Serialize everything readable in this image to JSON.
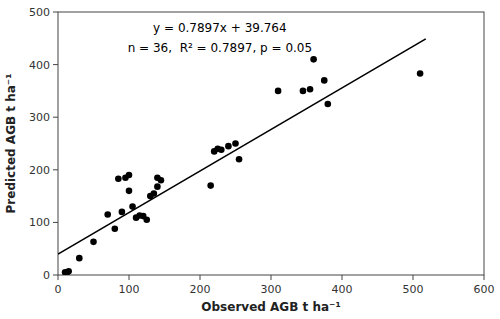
{
  "chart_data": {
    "type": "scatter",
    "xlabel": "Observed AGB t ha⁻¹",
    "ylabel": "Predicted AGB t ha⁻¹",
    "annotations": [
      "y = 0.7897x + 39.764",
      "n = 36,  R² = 0.7897, p = 0.05"
    ],
    "xlim": [
      0,
      600
    ],
    "ylim": [
      0,
      500
    ],
    "xticks": [
      0,
      100,
      200,
      300,
      400,
      500,
      600
    ],
    "yticks": [
      0,
      100,
      200,
      300,
      400,
      500
    ],
    "grid": false,
    "series": [
      {
        "type": "scatter",
        "color": "black",
        "x": [
          10,
          12,
          15,
          30,
          50,
          70,
          80,
          85,
          90,
          95,
          100,
          100,
          105,
          110,
          115,
          120,
          125,
          130,
          135,
          140,
          140,
          145,
          215,
          220,
          225,
          230,
          240,
          250,
          255,
          310,
          345,
          355,
          360,
          375,
          380,
          510
        ],
        "values": [
          5,
          3,
          7,
          32,
          63,
          115,
          88,
          183,
          120,
          185,
          190,
          160,
          130,
          109,
          113,
          112,
          105,
          150,
          155,
          168,
          185,
          180,
          170,
          235,
          240,
          238,
          245,
          250,
          220,
          350,
          350,
          353,
          410,
          370,
          325,
          383
        ]
      },
      {
        "type": "line",
        "color": "black",
        "x": [
          0,
          518
        ],
        "values": [
          39.764,
          448.8286
        ]
      }
    ]
  }
}
